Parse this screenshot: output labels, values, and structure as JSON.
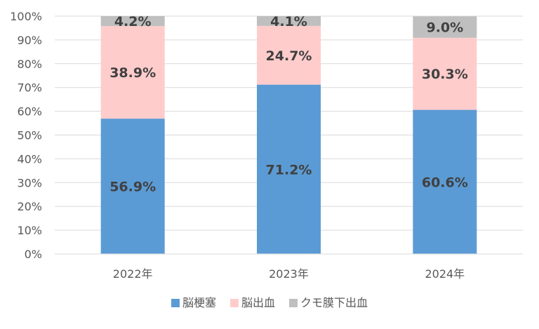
{
  "chart_data": {
    "type": "bar",
    "stacked": true,
    "percent": true,
    "categories": [
      "2022年",
      "2023年",
      "2024年"
    ],
    "series": [
      {
        "name": "脳梗塞",
        "values": [
          56.9,
          71.2,
          60.6
        ],
        "labels": [
          "56.9%",
          "71.2%",
          "60.6%"
        ],
        "color": "#5b9bd5"
      },
      {
        "name": "脳出血",
        "values": [
          38.9,
          24.7,
          30.3
        ],
        "labels": [
          "38.9%",
          "24.7%",
          "30.3%"
        ],
        "color": "#ffcccc"
      },
      {
        "name": "クモ膜下出血",
        "values": [
          4.2,
          4.1,
          9.0
        ],
        "labels": [
          "4.2%",
          "4.1%",
          "9.0%"
        ],
        "color": "#bfbfbf"
      }
    ],
    "ylim": [
      0,
      100
    ],
    "yticks": [
      "0%",
      "10%",
      "20%",
      "30%",
      "40%",
      "50%",
      "60%",
      "70%",
      "80%",
      "90%",
      "100%"
    ],
    "grid": true,
    "legend_position": "bottom",
    "gridline_color": "#d9d9d9"
  }
}
